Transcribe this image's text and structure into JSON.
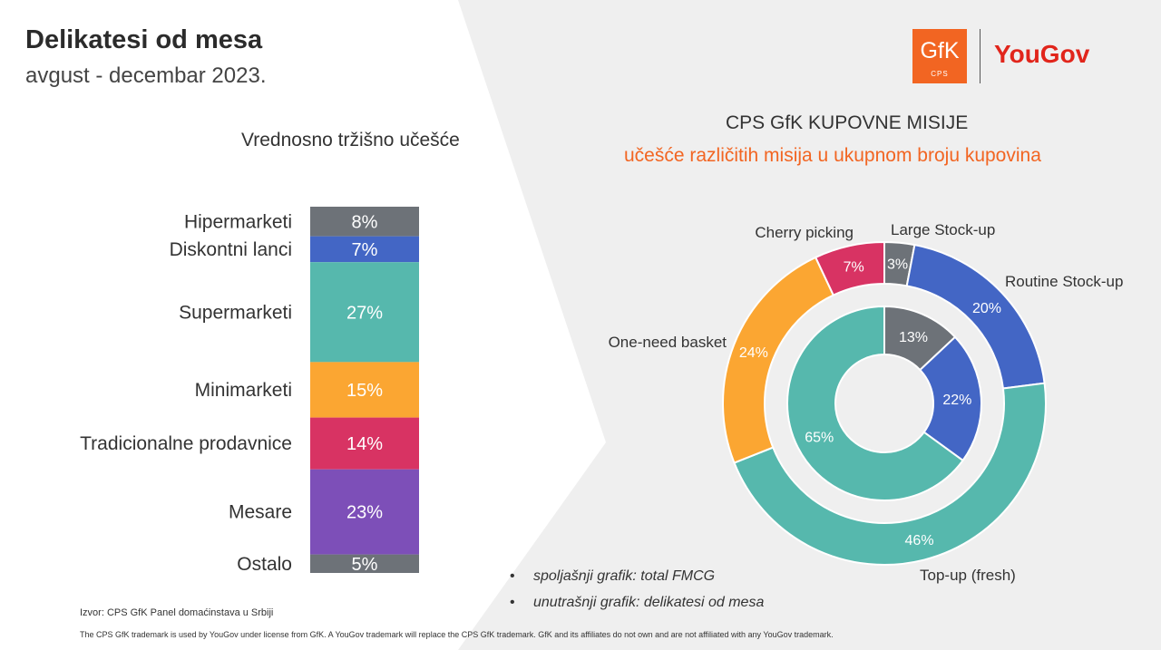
{
  "header": {
    "title": "Delikatesi od mesa",
    "subtitle": "avgust - decembar 2023."
  },
  "logos": {
    "gfk_text": "GfK",
    "gfk_sub": "CPS",
    "yougov_text": "YouGov",
    "gfk_color": "#f26522",
    "yougov_color": "#e1251b"
  },
  "chart_data": [
    {
      "type": "bar",
      "title": "Vrednosno tržišno učešće",
      "stacked": true,
      "categories": [
        "Hipermarketi",
        "Diskontni lanci",
        "Supermarketi",
        "Minimarketi",
        "Tradicionalne prodavnice",
        "Mesare",
        "Ostalo"
      ],
      "values": [
        8,
        7,
        27,
        15,
        14,
        23,
        5
      ],
      "value_labels": [
        "8%",
        "7%",
        "27%",
        "15%",
        "14%",
        "23%",
        "5%"
      ],
      "colors": [
        "#6d7278",
        "#4366c5",
        "#56b8ad",
        "#fba632",
        "#d83363",
        "#7d4fb8",
        "#6d7278"
      ]
    },
    {
      "type": "pie",
      "title": "CPS GfK KUPOVNE MISIJE",
      "subtitle": "učešće različitih misija u ukupnom broju kupovina",
      "legend": [
        "Large Stock-up",
        "Routine Stock-up",
        "Top-up (fresh)",
        "One-need basket",
        "Cherry picking"
      ],
      "colors": [
        "#6d7278",
        "#4366c5",
        "#56b8ad",
        "#fba632",
        "#d83363"
      ],
      "series": [
        {
          "ring": "outer",
          "note": "spoljašnji grafik: total FMCG",
          "values": [
            3,
            20,
            46,
            24,
            7
          ],
          "value_labels": [
            "3%",
            "20%",
            "46%",
            "24%",
            "7%"
          ]
        },
        {
          "ring": "inner",
          "note": "unutrašnji grafik: delikatesi od mesa",
          "values": [
            13,
            22,
            65,
            0,
            0
          ],
          "value_labels": [
            "13%",
            "22%",
            "65%",
            "",
            ""
          ]
        }
      ]
    }
  ],
  "footer": {
    "source": "Izvor: CPS GfK Panel domaćinstava u Srbiji",
    "disclaimer": "The CPS GfK trademark is used by YouGov under license from GfK. A YouGov trademark will replace the CPS GfK trademark. GfK and its affiliates do not own and are not affiliated with any YouGov trademark.",
    "bullet": "•"
  }
}
